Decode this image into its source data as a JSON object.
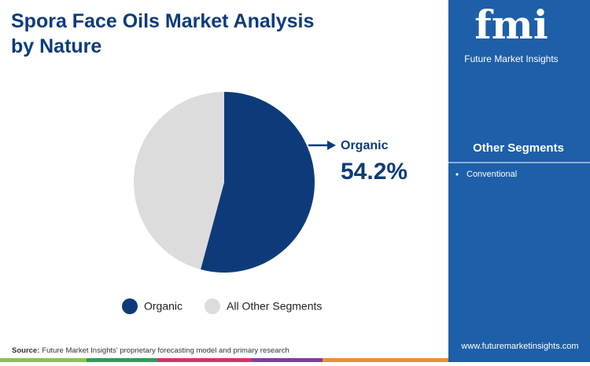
{
  "chart_data": {
    "type": "pie",
    "title": "Spora Face Oils Market Analysis by Nature",
    "categories": [
      "Organic",
      "All Other Segments"
    ],
    "values": [
      54.2,
      45.8
    ],
    "value_labels": [
      "54.2%",
      null
    ],
    "colors": [
      "#0d3b7a",
      "#dcdcdc"
    ]
  },
  "logo": {
    "mark": "fmi",
    "name": "Future Market Insights"
  },
  "side_panel": {
    "title": "Other Segments",
    "items": [
      "Conventional"
    ]
  },
  "source": {
    "label": "Source:",
    "text": "Future Market Insights' proprietary forecasting model and primary research"
  },
  "website": "www.futuremarketinsights.com"
}
